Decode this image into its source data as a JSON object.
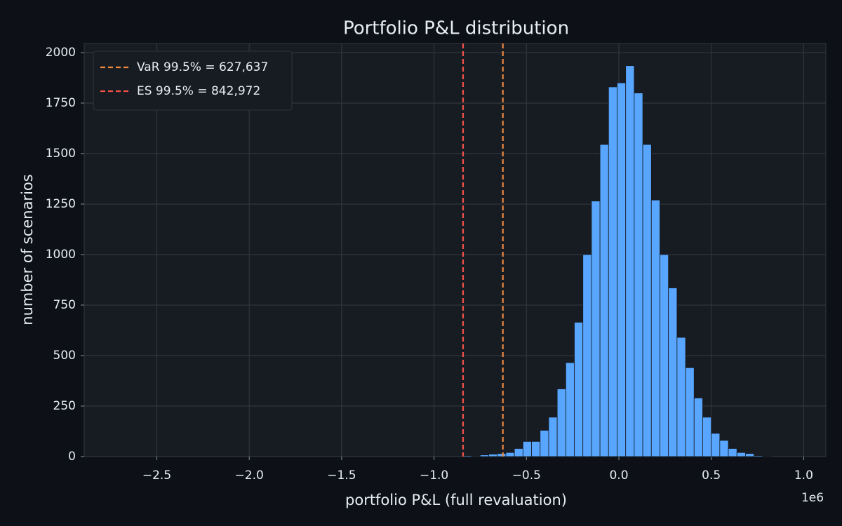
{
  "chart_data": {
    "type": "histogram",
    "title": "Portfolio P&L distribution",
    "x_label": "portfolio P&L (full revaluation)",
    "y_label": "number of scenarios",
    "x_offset_label": "1e6",
    "bins": [
      -0.8429,
      -0.7966,
      -0.7503,
      -0.704,
      -0.6577,
      -0.6114,
      -0.5651,
      -0.5188,
      -0.4725,
      -0.4262,
      -0.3799,
      -0.3336,
      -0.2873,
      -0.241,
      -0.1947,
      -0.1484,
      -0.1021,
      -0.0558,
      -0.0095,
      0.0368,
      0.0831,
      0.1294,
      0.1757,
      0.222,
      0.2683,
      0.3146,
      0.3609,
      0.4072,
      0.4535,
      0.4998,
      0.5461,
      0.5924,
      0.6387,
      0.685,
      0.7313,
      0.7776,
      0.8239
    ],
    "values": [
      5,
      3,
      8,
      12,
      15,
      20,
      40,
      75,
      75,
      130,
      195,
      335,
      465,
      665,
      1000,
      1265,
      1545,
      1830,
      1850,
      1935,
      1800,
      1545,
      1270,
      1000,
      835,
      590,
      440,
      290,
      195,
      115,
      80,
      40,
      20,
      15,
      5,
      2
    ],
    "color": "#58a6ff",
    "lines": [
      {
        "name": "VaR 99.5% = 627,637",
        "x": -0.627637,
        "color": "#f0883e"
      },
      {
        "name": "ES 99.5% = 842,972",
        "x": -0.842972,
        "color": "#f85149"
      }
    ],
    "xlim": [
      -2.893,
      1.12
    ],
    "xticks": [
      {
        "value": -2.5,
        "label": "−2.5"
      },
      {
        "value": -2.0,
        "label": "−2.0"
      },
      {
        "value": -1.5,
        "label": "−1.5"
      },
      {
        "value": -1.0,
        "label": "−1.0"
      },
      {
        "value": -0.5,
        "label": "−0.5"
      },
      {
        "value": 0,
        "label": "0.0"
      },
      0.5,
      {
        "value": 1.0,
        "label": "1.0"
      }
    ],
    "ylim": [
      0,
      2045
    ],
    "yticks": [
      0,
      250,
      500,
      750,
      1000,
      1250,
      1500,
      1750,
      2000
    ],
    "grid": true,
    "legend": "upper left"
  }
}
